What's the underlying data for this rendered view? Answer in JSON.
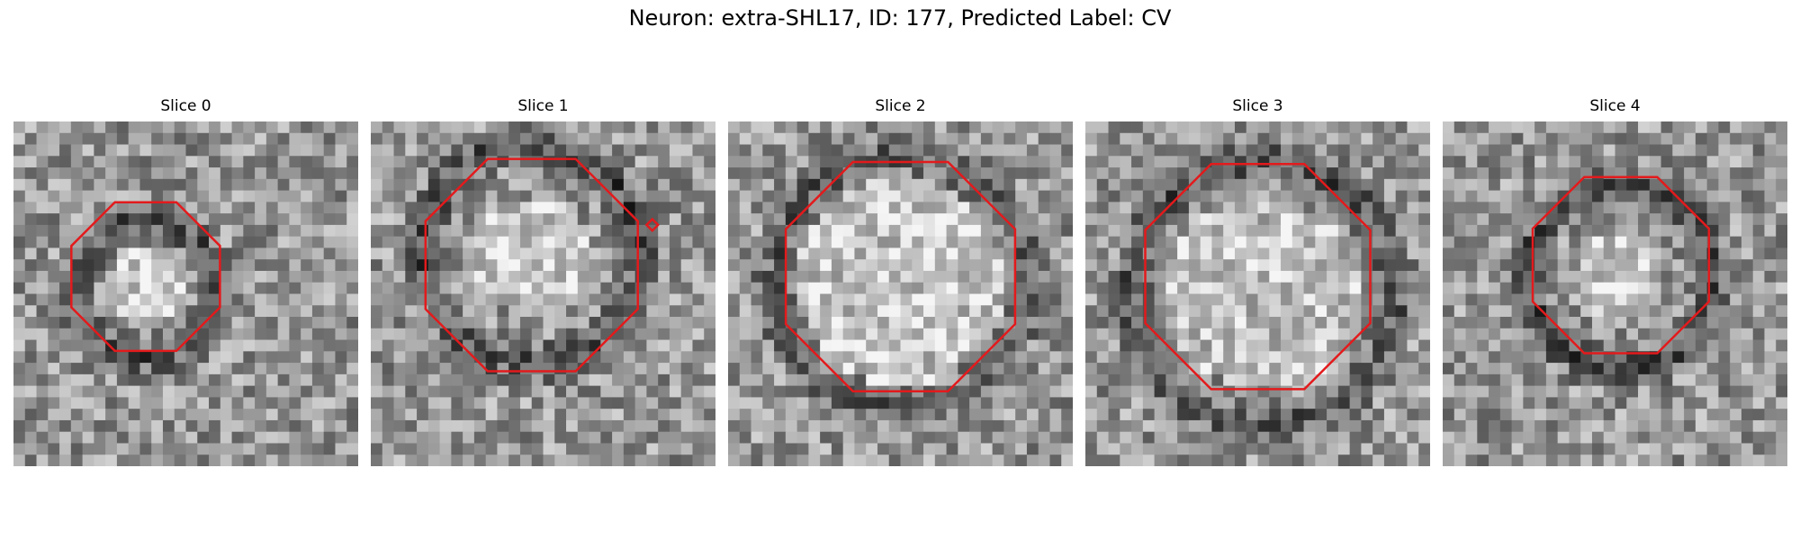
{
  "figure": {
    "title": "Neuron: extra-SHL17, ID: 177, Predicted Label: CV"
  },
  "panels": [
    {
      "title": "Slice 0"
    },
    {
      "title": "Slice 1"
    },
    {
      "title": "Slice 2"
    },
    {
      "title": "Slice 3"
    },
    {
      "title": "Slice 4"
    }
  ],
  "colors": {
    "contour": "#e31a1c",
    "background": "#ffffff"
  },
  "image": {
    "grid_cells": 30,
    "colormap": "grayscale",
    "overlay": "red-octagonal-contour"
  }
}
